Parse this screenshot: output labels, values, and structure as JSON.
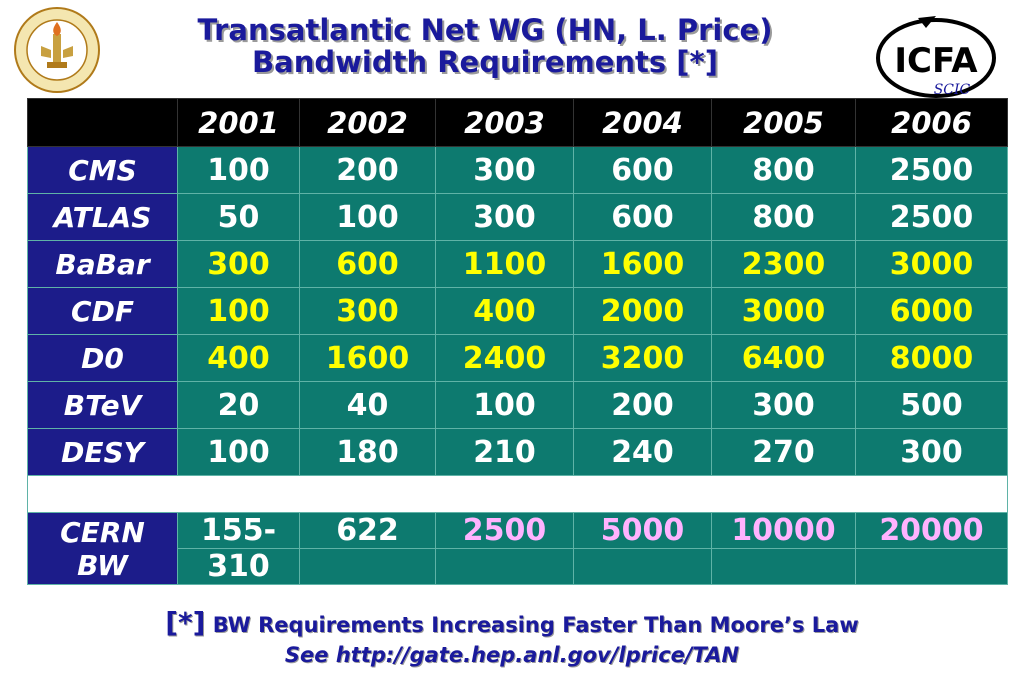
{
  "title": {
    "line1": "Transatlantic Net WG (HN, L. Price)",
    "line2": "Bandwidth Requirements [*]"
  },
  "logos": {
    "left": "caltech-seal",
    "right": "ICFA",
    "right_sub": "SCIC"
  },
  "table": {
    "years": [
      "2001",
      "2002",
      "2003",
      "2004",
      "2005",
      "2006"
    ],
    "rows": [
      {
        "label": "CMS",
        "values": [
          "100",
          "200",
          "300",
          "600",
          "800",
          "2500"
        ]
      },
      {
        "label": "ATLAS",
        "values": [
          "50",
          "100",
          "300",
          "600",
          "800",
          "2500"
        ]
      },
      {
        "label": "BaBar",
        "values": [
          "300",
          "600",
          "1100",
          "1600",
          "2300",
          "3000"
        ]
      },
      {
        "label": "CDF",
        "values": [
          "100",
          "300",
          "400",
          "2000",
          "3000",
          "6000"
        ]
      },
      {
        "label": "D0",
        "values": [
          "400",
          "1600",
          "2400",
          "3200",
          "6400",
          "8000"
        ]
      },
      {
        "label": "BTeV",
        "values": [
          "20",
          "40",
          "100",
          "200",
          "300",
          "500"
        ]
      },
      {
        "label": "DESY",
        "values": [
          "100",
          "180",
          "210",
          "240",
          "270",
          "300"
        ]
      }
    ],
    "cern": {
      "label_line1": "CERN",
      "label_line2": "BW",
      "values": [
        "155-",
        "622",
        "2500",
        "5000",
        "10000",
        "20000"
      ],
      "values_line2": [
        "310",
        "",
        "",
        "",
        "",
        ""
      ]
    }
  },
  "footer": {
    "marker": "[*]",
    "note": "BW Requirements Increasing Faster Than Moore’s Law",
    "link": "See http://gate.hep.anl.gov/lprice/TAN"
  }
}
